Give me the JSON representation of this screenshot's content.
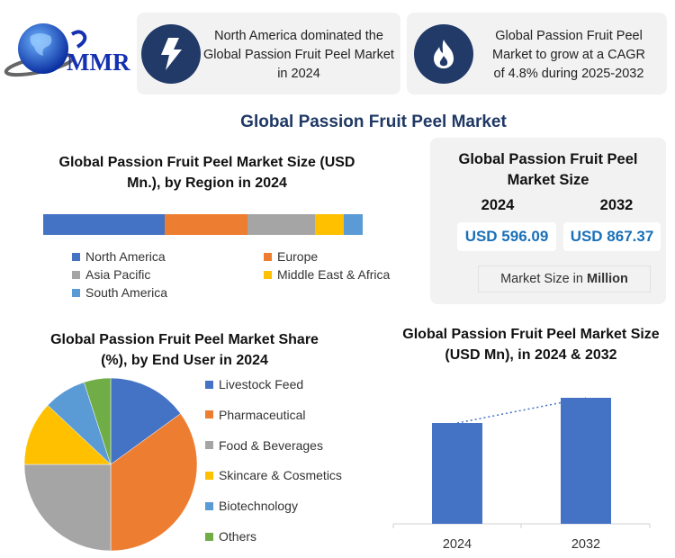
{
  "logo": {
    "text": "MMR"
  },
  "highlights": [
    {
      "icon": "lightning-icon",
      "text": "North America dominated the Global Passion Fruit Peel Market in 2024"
    },
    {
      "icon": "flame-icon",
      "text": "Global Passion Fruit Peel Market to grow at a CAGR of 4.8% during 2025-2032"
    }
  ],
  "main_title": "Global Passion Fruit Peel Market",
  "market_size_panel": {
    "title": "Global Passion Fruit Peel Market Size",
    "years": [
      "2024",
      "2032"
    ],
    "values": [
      "USD 596.09",
      "USD 867.37"
    ],
    "unit_prefix": "Market Size in ",
    "unit_bold": "Million"
  },
  "colors": {
    "blue": "#4472c4",
    "orange": "#ed7d31",
    "gray": "#a5a5a5",
    "yellow": "#ffc000",
    "lightblue": "#5b9bd5",
    "green": "#70ad47",
    "navy": "#213a68",
    "title": "#1f3864"
  },
  "chart_data": [
    {
      "type": "bar",
      "stacked": true,
      "orientation": "horizontal",
      "title": "Global Passion Fruit Peel Market Size (USD Mn.), by Region in 2024",
      "legend_position": "bottom",
      "series": [
        {
          "name": "North America",
          "values": [
            38
          ],
          "color": "#4472c4"
        },
        {
          "name": "Europe",
          "values": [
            26
          ],
          "color": "#ed7d31"
        },
        {
          "name": "Asia Pacific",
          "values": [
            21
          ],
          "color": "#a5a5a5"
        },
        {
          "name": "Middle East & Africa",
          "values": [
            9
          ],
          "color": "#ffc000"
        },
        {
          "name": "South America",
          "values": [
            6
          ],
          "color": "#5b9bd5"
        }
      ]
    },
    {
      "type": "pie",
      "title": "Global Passion Fruit Peel Market Share (%), by End User in 2024",
      "legend_position": "right",
      "slices": [
        {
          "label": "Livestock Feed",
          "value": 15,
          "color": "#4472c4"
        },
        {
          "label": "Pharmaceutical",
          "value": 35,
          "color": "#ed7d31"
        },
        {
          "label": "Food & Beverages",
          "value": 25,
          "color": "#a5a5a5"
        },
        {
          "label": "Skincare & Cosmetics",
          "value": 12,
          "color": "#ffc000"
        },
        {
          "label": "Biotechnology",
          "value": 8,
          "color": "#5b9bd5"
        },
        {
          "label": "Others",
          "value": 5,
          "color": "#70ad47"
        }
      ]
    },
    {
      "type": "bar",
      "title": "Global Passion Fruit Peel Market Size (USD Mn), in 2024 & 2032",
      "categories": [
        "2024",
        "2032"
      ],
      "values": [
        596.09,
        867.37
      ],
      "trendline": "dotted",
      "grid": false,
      "color": "#4472c4"
    }
  ]
}
